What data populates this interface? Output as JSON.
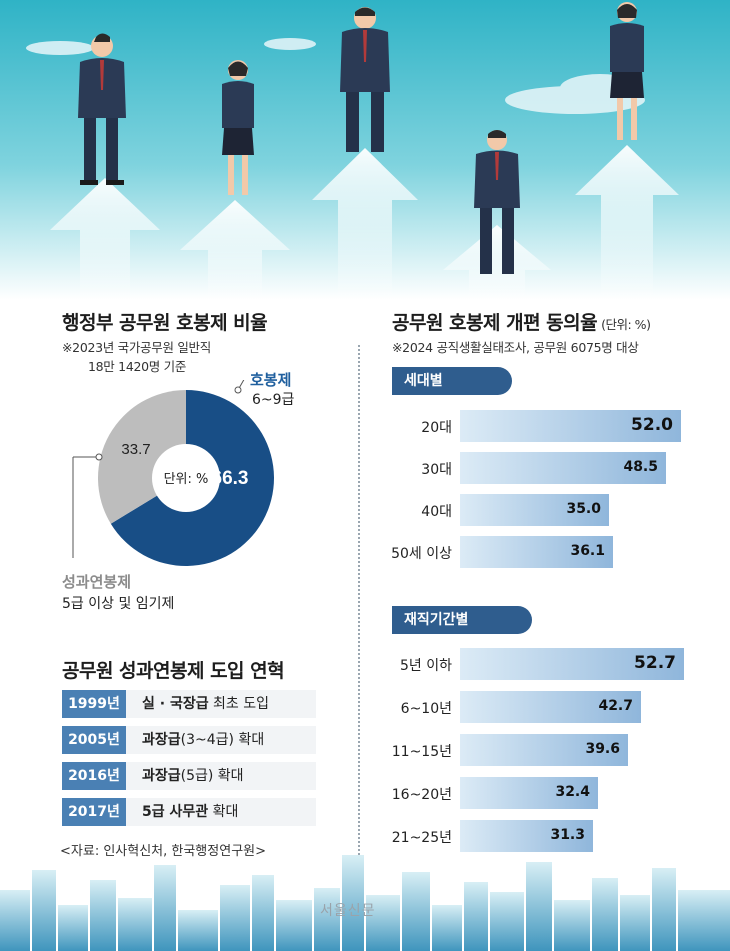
{
  "left_title": "행정부 공무원 호봉제 비율",
  "left_note_1": "※2023년 국가공무원 일반직",
  "left_note_2": "18만 1420명 기준",
  "right_title": "공무원 호봉제 개편 동의율",
  "right_unit": "(단위: %)",
  "right_note": "※2024 공직생활실태조사, 공무원 6075명 대상",
  "donut_center": "단위: %",
  "donut_labels": {
    "hobong_name": "호봉제",
    "hobong_sub": "6~9급",
    "perf_name": "성과연봉제",
    "perf_sub": "5급 이상 및 임기제"
  },
  "timeline_title": "공무원 성과연봉제 도입 연혁",
  "timeline": [
    {
      "year": "1999년",
      "strong": "실 · 국장급",
      "rest": " 최초 도입"
    },
    {
      "year": "2005년",
      "strong": "과장급",
      "rest": "(3~4급) 확대"
    },
    {
      "year": "2016년",
      "strong": "과장급",
      "rest": "(5급) 확대"
    },
    {
      "year": "2017년",
      "strong": "5급 사무관",
      "rest": " 확대"
    }
  ],
  "source": "<자료: 인사혁신처, 한국행정연구원>",
  "watermark": "서울신문",
  "colors": {
    "accent_dark": "#184e86",
    "accent_gray": "#bdbdbd",
    "bar_start": "#dcebf6",
    "bar_end": "#8fb6db",
    "tab": "#2f5d8e",
    "timeline_year": "#4a80b4"
  },
  "chart_data": [
    {
      "type": "pie",
      "title": "행정부 공무원 호봉제 비율",
      "unit": "%",
      "labels": [
        "호봉제",
        "성과연봉제"
      ],
      "values": [
        66.3,
        33.7
      ]
    },
    {
      "type": "bar",
      "title": "세대별",
      "orientation": "horizontal",
      "categories": [
        "20대",
        "30대",
        "40대",
        "50세 이상"
      ],
      "values": [
        "52.0",
        "48.5",
        "35.0",
        "36.1"
      ]
    },
    {
      "type": "bar",
      "title": "재직기간별",
      "orientation": "horizontal",
      "categories": [
        "5년 이하",
        "6~10년",
        "11~15년",
        "16~20년",
        "21~25년"
      ],
      "values": [
        "52.7",
        "42.7",
        "39.6",
        "32.4",
        "31.3"
      ]
    }
  ]
}
